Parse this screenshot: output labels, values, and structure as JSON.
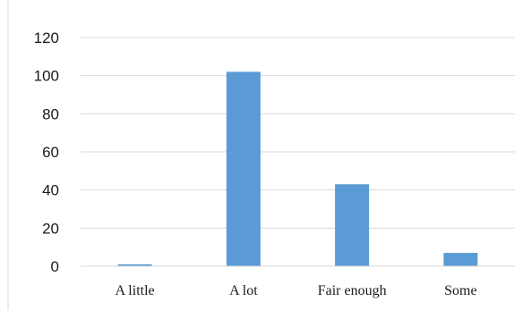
{
  "chart_data": {
    "type": "bar",
    "categories": [
      "A little",
      "A lot",
      "Fair enough",
      "Some"
    ],
    "values": [
      1,
      102,
      43,
      7
    ],
    "ylim": [
      0,
      120
    ],
    "yticks": [
      0,
      20,
      40,
      60,
      80,
      100,
      120
    ],
    "title": "",
    "xlabel": "",
    "ylabel": "",
    "grid": true,
    "legend": "none",
    "colors": {
      "bar": "#5b9bd5",
      "grid": "#d9d9d9",
      "axis": "#d9d9d9",
      "frame": "#d9d9d9"
    }
  }
}
